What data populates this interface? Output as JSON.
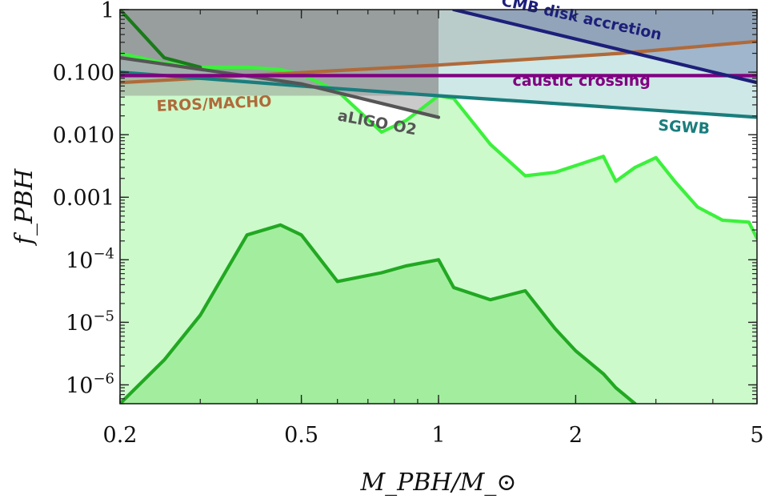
{
  "chart_data": {
    "type": "area",
    "xlabel": "M_PBH/M_⊙",
    "ylabel": "f_PBH",
    "x_scale": "log",
    "y_scale": "log",
    "xlim": [
      0.2,
      5
    ],
    "ylim": [
      5e-07,
      1
    ],
    "x_ticks": [
      {
        "value": 0.2,
        "label": "0.2"
      },
      {
        "value": 0.5,
        "label": "0.5"
      },
      {
        "value": 1,
        "label": "1"
      },
      {
        "value": 2,
        "label": "2"
      },
      {
        "value": 5,
        "label": "5"
      }
    ],
    "y_ticks": [
      {
        "value": 1,
        "label": "1",
        "sup": ""
      },
      {
        "value": 0.1,
        "label": "0.100",
        "sup": ""
      },
      {
        "value": 0.01,
        "label": "0.010",
        "sup": ""
      },
      {
        "value": 0.001,
        "label": "0.001",
        "sup": ""
      },
      {
        "value": 0.0001,
        "label": "10",
        "sup": "−4"
      },
      {
        "value": 1e-05,
        "label": "10",
        "sup": "−5"
      },
      {
        "value": 1e-06,
        "label": "10",
        "sup": "−6"
      }
    ],
    "gray_region_x_max": 1,
    "series": [
      {
        "name": "CMB disk accretion",
        "color": "#1d1f7a",
        "x": [
          1.08,
          5.0
        ],
        "y": [
          1.0,
          0.068
        ]
      },
      {
        "name": "EROS/MACHO",
        "color": "#b06a3a",
        "x": [
          0.2,
          0.4,
          1.0,
          2.5,
          5.0
        ],
        "y": [
          0.068,
          0.09,
          0.13,
          0.2,
          0.31
        ]
      },
      {
        "name": "caustic crossing",
        "color": "#800080",
        "x": [
          0.2,
          5.0
        ],
        "y": [
          0.088,
          0.088
        ]
      },
      {
        "name": "SGWB",
        "color": "#1a7d7d",
        "x": [
          0.2,
          0.5,
          1.0,
          2.0,
          5.0
        ],
        "y": [
          0.1,
          0.06,
          0.042,
          0.03,
          0.019
        ]
      },
      {
        "name": "aLIGO O2",
        "color": "#555555",
        "x": [
          0.2,
          0.5,
          1.0
        ],
        "y": [
          0.17,
          0.065,
          0.019
        ]
      },
      {
        "name": "",
        "color": "#3cf03c",
        "x": [
          0.2,
          0.25,
          0.3,
          0.38,
          0.45,
          0.5,
          0.6,
          0.75,
          0.85,
          1.0,
          1.08,
          1.3,
          1.55,
          1.8,
          2.0,
          2.3,
          2.45,
          2.7,
          3.0,
          3.3,
          3.7,
          4.2,
          4.8,
          5.0
        ],
        "y": [
          0.2,
          0.14,
          0.12,
          0.12,
          0.11,
          0.092,
          0.05,
          0.011,
          0.017,
          0.042,
          0.038,
          0.007,
          0.0022,
          0.0025,
          0.0032,
          0.0045,
          0.0018,
          0.003,
          0.0043,
          0.0018,
          0.0007,
          0.00043,
          0.0004,
          0.00022
        ]
      },
      {
        "name": "",
        "color": "#22a822",
        "x": [
          0.2,
          0.25,
          0.3,
          0.38,
          0.45,
          0.5,
          0.6,
          0.75,
          0.85,
          1.0,
          1.08,
          1.3,
          1.55,
          1.8,
          2.0,
          2.3,
          2.45,
          2.7
        ],
        "y": [
          5e-07,
          2.5e-06,
          1.3e-05,
          0.00025,
          0.00036,
          0.00025,
          4.5e-05,
          6.2e-05,
          8e-05,
          0.0001,
          3.6e-05,
          2.3e-05,
          3.2e-05,
          8e-06,
          3.5e-06,
          1.5e-06,
          9e-07,
          5e-07
        ]
      },
      {
        "name": "",
        "color": "#1a7a1a",
        "x": [
          0.2,
          0.25,
          0.3
        ],
        "y": [
          1.0,
          0.17,
          0.12
        ]
      }
    ]
  }
}
